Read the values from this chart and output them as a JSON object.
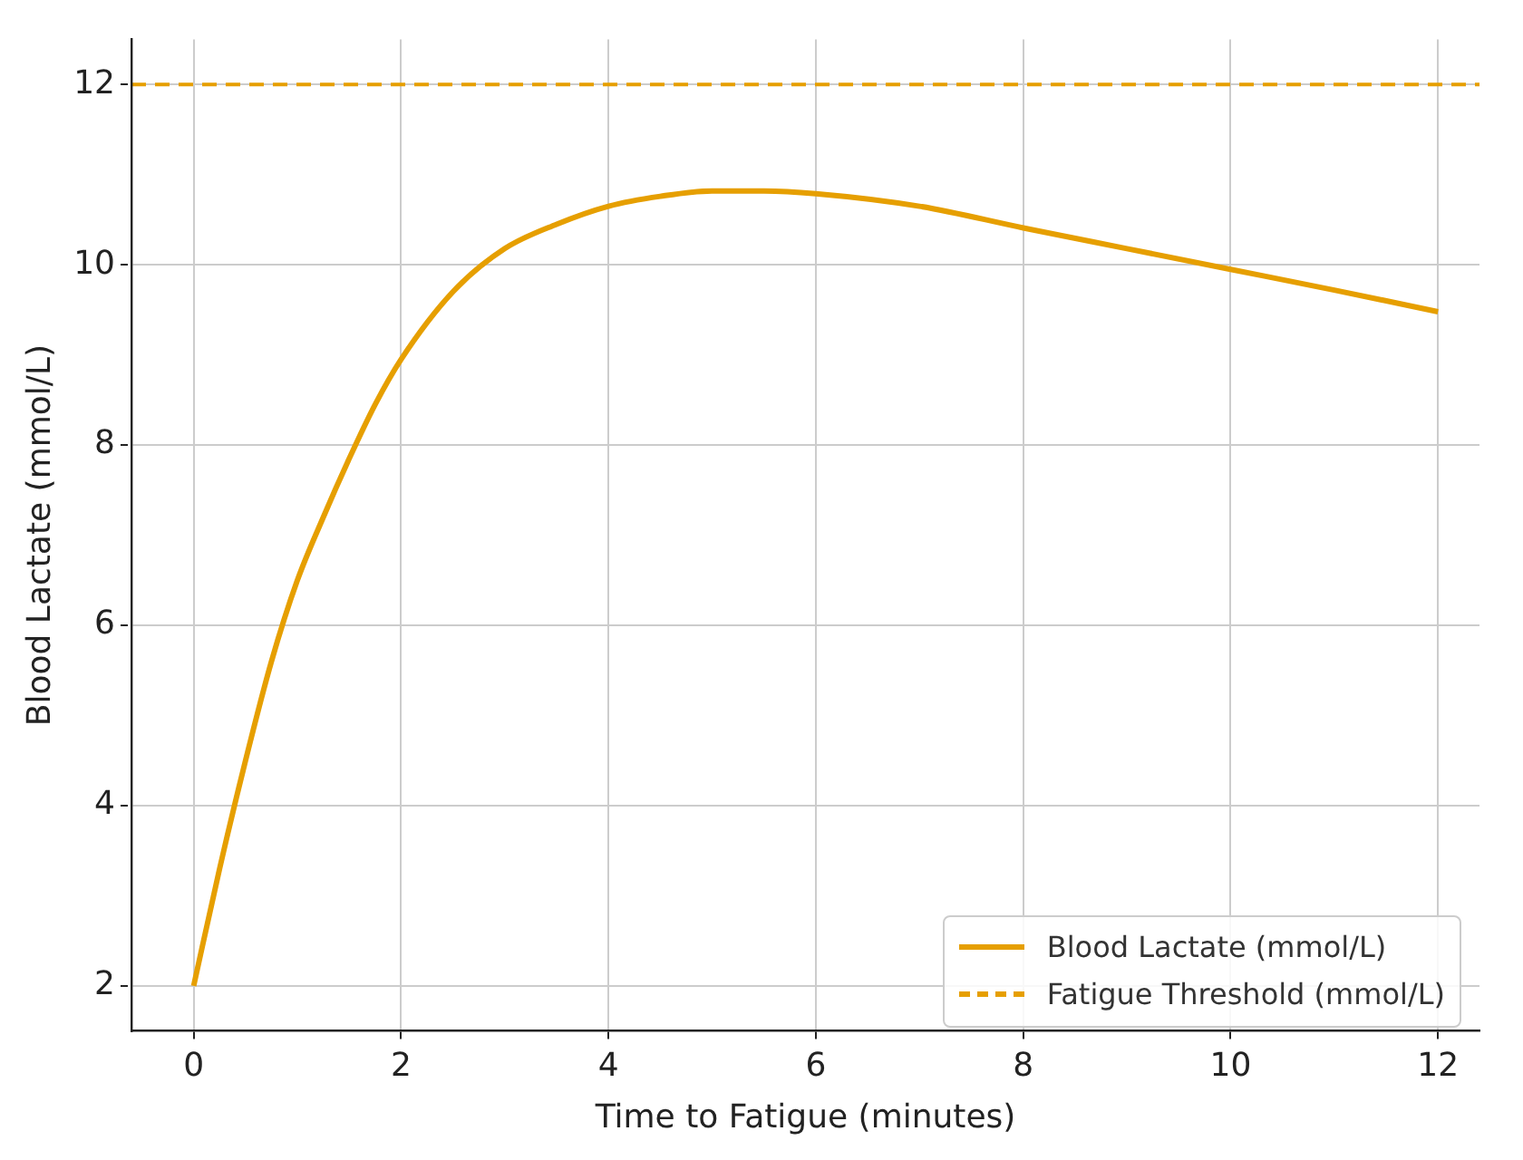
{
  "chart_data": {
    "type": "line",
    "xlabel": "Time to Fatigue (minutes)",
    "ylabel": "Blood Lactate (mmol/L)",
    "series": [
      {
        "name": "Blood Lactate (mmol/L)",
        "color": "#e69f00",
        "x": [
          0,
          0.25,
          0.5,
          0.75,
          1,
          1.25,
          1.5,
          1.75,
          2,
          2.5,
          3,
          3.5,
          4,
          4.5,
          5,
          5.5,
          6,
          7,
          8,
          9,
          10,
          11,
          12
        ],
        "values": [
          2,
          3.3,
          4.5,
          5.6,
          6.5,
          7.2,
          7.85,
          8.45,
          8.95,
          9.7,
          10.18,
          10.45,
          10.65,
          10.76,
          10.82,
          10.82,
          10.79,
          10.65,
          10.41,
          10.18,
          9.95,
          9.72,
          9.48
        ]
      }
    ],
    "ref_lines": [
      {
        "axis": "y",
        "value": 12,
        "label": "Fatigue Threshold (mmol/L)",
        "color": "#e69f00",
        "line_style": "dashed"
      }
    ],
    "xlim": [
      -0.6,
      12.4
    ],
    "xticks": [
      0,
      2,
      4,
      6,
      8,
      10,
      12
    ],
    "ylim": [
      1.5,
      12.5
    ],
    "yticks": [
      2,
      4,
      6,
      8,
      10,
      12
    ],
    "grid": true,
    "legend": "bottom right",
    "line_style": "solid",
    "marker": "none"
  }
}
